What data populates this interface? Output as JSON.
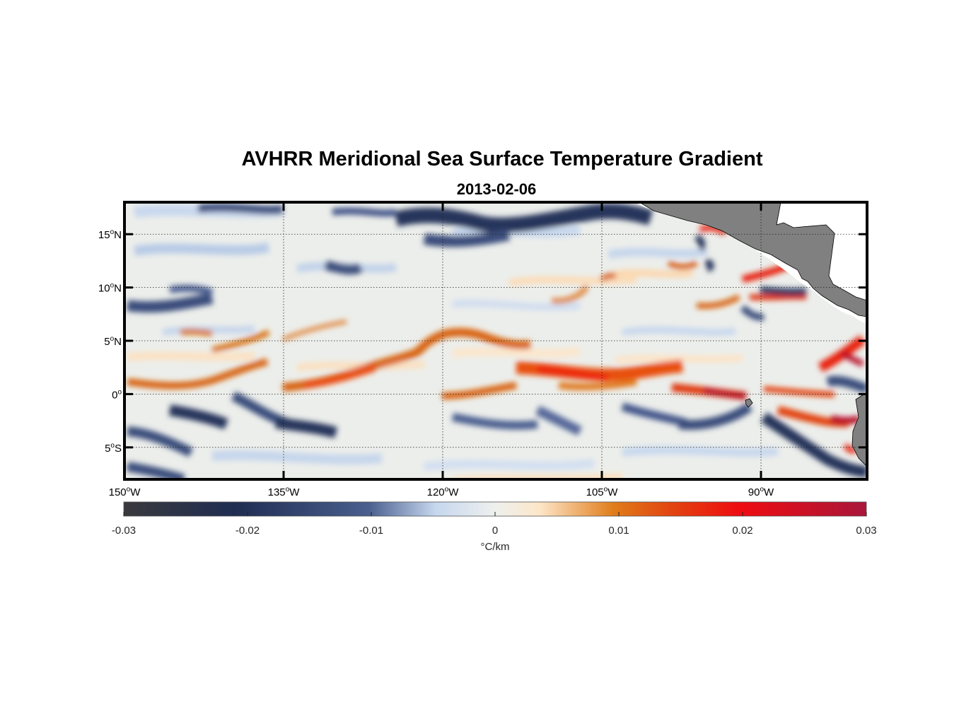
{
  "title": "AVHRR Meridional Sea Surface Temperature Gradient",
  "subtitle": "2013-02-06",
  "map": {
    "lon_range": [
      -150,
      -80
    ],
    "lat_range": [
      -8,
      18
    ],
    "lon_ticks": [
      {
        "value": -150,
        "num": "150",
        "hemi": "W"
      },
      {
        "value": -135,
        "num": "135",
        "hemi": "W"
      },
      {
        "value": -120,
        "num": "120",
        "hemi": "W"
      },
      {
        "value": -105,
        "num": "105",
        "hemi": "W"
      },
      {
        "value": -90,
        "num": "90",
        "hemi": "W"
      }
    ],
    "lat_ticks": [
      {
        "value": 15,
        "num": "15",
        "hemi": "N"
      },
      {
        "value": 10,
        "num": "10",
        "hemi": "N"
      },
      {
        "value": 5,
        "num": "5",
        "hemi": "N"
      },
      {
        "value": 0,
        "num": "0",
        "hemi": ""
      },
      {
        "value": -5,
        "num": "5",
        "hemi": "S"
      }
    ],
    "degree_symbol": "o",
    "grid": "dotted",
    "land_color": "#808080"
  },
  "colorbar": {
    "range": [
      -0.03,
      0.03
    ],
    "ticks": [
      {
        "value": -0.03,
        "label": "-0.03"
      },
      {
        "value": -0.02,
        "label": "-0.02"
      },
      {
        "value": -0.01,
        "label": "-0.01"
      },
      {
        "value": 0,
        "label": "0"
      },
      {
        "value": 0.01,
        "label": "0.01"
      },
      {
        "value": 0.02,
        "label": "0.02"
      },
      {
        "value": 0.03,
        "label": "0.03"
      }
    ],
    "label": "°C/km",
    "colormap": [
      {
        "v": 0.0,
        "c": "#3a3a3e"
      },
      {
        "v": 0.15,
        "c": "#1f2d52"
      },
      {
        "v": 0.33,
        "c": "#4a5f8e"
      },
      {
        "v": 0.42,
        "c": "#c6d7ee"
      },
      {
        "v": 0.5,
        "c": "#eef0ee"
      },
      {
        "v": 0.56,
        "c": "#fde6c8"
      },
      {
        "v": 0.66,
        "c": "#e07c1a"
      },
      {
        "v": 0.74,
        "c": "#e24210"
      },
      {
        "v": 0.83,
        "c": "#ee0c10"
      },
      {
        "v": 1.0,
        "c": "#a8163a"
      }
    ]
  }
}
